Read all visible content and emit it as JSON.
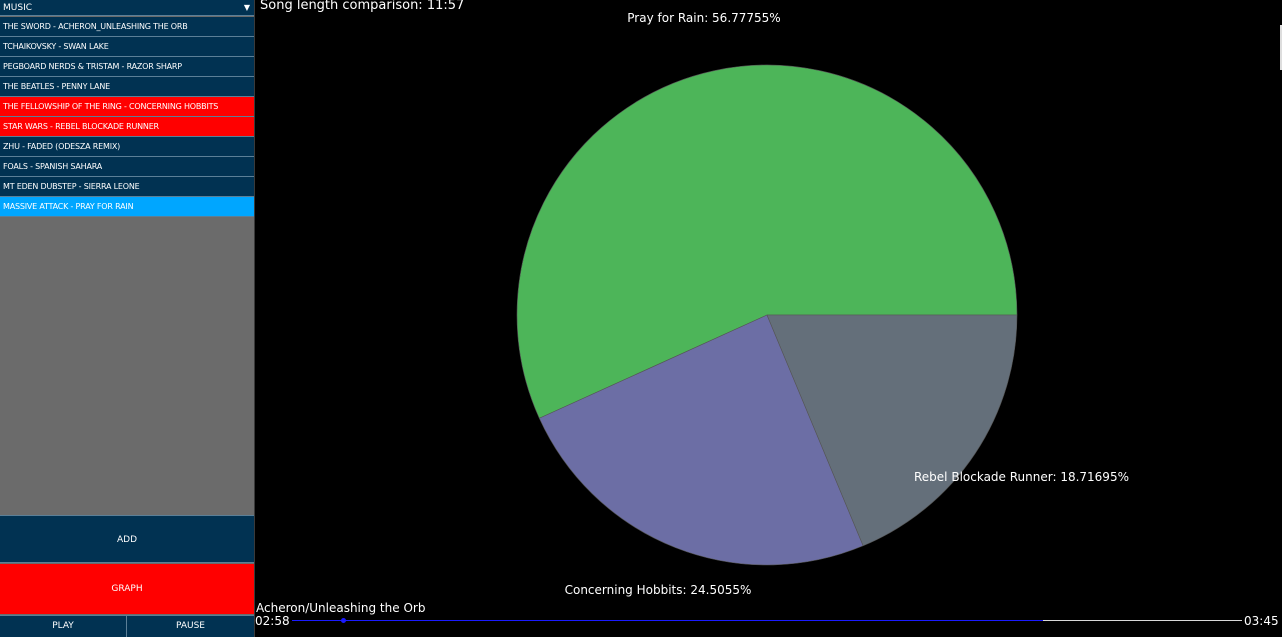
{
  "sidebar": {
    "dropdown": {
      "selected": "MUSIC",
      "arrow_icon": "triangle-down-icon"
    },
    "songs": [
      {
        "label": "THE SWORD - ACHERON_UNLEASHING THE ORB",
        "state": "normal"
      },
      {
        "label": "TCHAIKOVSKY - SWAN LAKE",
        "state": "normal"
      },
      {
        "label": "PEGBOARD NERDS & TRISTAM - RAZOR SHARP",
        "state": "normal"
      },
      {
        "label": "THE BEATLES - PENNY LANE",
        "state": "normal"
      },
      {
        "label": "THE FELLOWSHIP OF THE RING - CONCERNING HOBBITS",
        "state": "red"
      },
      {
        "label": "STAR WARS - REBEL BLOCKADE RUNNER",
        "state": "red"
      },
      {
        "label": "ZHU - FADED (ODESZA REMIX)",
        "state": "normal"
      },
      {
        "label": "FOALS - SPANISH SAHARA",
        "state": "normal"
      },
      {
        "label": "MT EDEN DUBSTEP - SIERRA LEONE",
        "state": "normal"
      },
      {
        "label": "MASSIVE ATTACK - PRAY FOR RAIN",
        "state": "blue"
      }
    ],
    "add_label": "ADD",
    "graph_label": "GRAPH",
    "play_label": "PLAY",
    "pause_label": "PAUSE"
  },
  "chart_title": "Song length comparison: 11:57",
  "chart_data": {
    "type": "pie",
    "title": "Song length comparison: 11:57",
    "slices": [
      {
        "name": "Pray for Rain",
        "value": 56.77755,
        "label": "Pray for Rain: 56.77755%",
        "color": "#4db559"
      },
      {
        "name": "Concerning Hobbits",
        "value": 24.5055,
        "label": "Concerning Hobbits: 24.5055%",
        "color": "#6c6ea5"
      },
      {
        "name": "Rebel Blockade Runner",
        "value": 18.71695,
        "label": "Rebel Blockade Runner: 18.71695%",
        "color": "#646f7a"
      }
    ]
  },
  "player": {
    "track": "Acheron/Unleashing the Orb",
    "elapsed": "02:58",
    "total": "03:45",
    "progress": 0.79
  },
  "colors": {
    "panel": "#013252",
    "highlight_red": "#ff0000",
    "highlight_blue": "#00a6ff",
    "seek": "#1a1aff"
  }
}
